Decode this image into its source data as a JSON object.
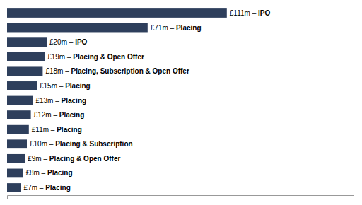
{
  "chart_data": {
    "type": "bar",
    "orientation": "horizontal",
    "categories": [
      "IPO",
      "Placing",
      "IPO",
      "Placing & Open Offer",
      "Placing, Subscription & Open Offer",
      "Placing",
      "Placing",
      "Placing",
      "Placing",
      "Placing & Subscription",
      "Placing & Open Offer",
      "Placing",
      "Placing"
    ],
    "values": [
      111,
      71,
      20,
      19,
      18,
      15,
      13,
      12,
      11,
      10,
      9,
      8,
      7
    ],
    "value_labels": [
      "£111m – ",
      "£71m – ",
      "£20m – ",
      "£19m – ",
      "£18m – ",
      "£15m – ",
      "£13m – ",
      "£12m – ",
      "£11m – ",
      "£10m – ",
      "£9m – ",
      "£8m – ",
      "£7m – "
    ],
    "color": "#2e3f5c",
    "xlim": [
      0,
      175
    ],
    "data_labels": true,
    "tick_labels": false,
    "grid": false
  }
}
